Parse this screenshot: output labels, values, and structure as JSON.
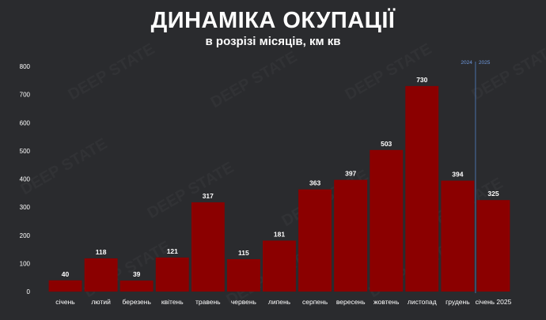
{
  "header": {
    "title": "ДИНАМІКА ОКУПАЦІЇ",
    "subtitle": "в розрізі місяців, км кв"
  },
  "watermark_text": "DEEP STATE",
  "colors": {
    "background": "#2a2b2e",
    "bar": "#8b0000",
    "divider": "#4a6fa5",
    "year_label": "#6f9ae0",
    "text": "#ffffff"
  },
  "year_divider": {
    "left_label": "2024",
    "right_label": "2025"
  },
  "chart_data": {
    "type": "bar",
    "title": "ДИНАМІКА ОКУПАЦІЇ",
    "subtitle": "в розрізі місяців, км кв",
    "categories": [
      "січень",
      "лютий",
      "березень",
      "квітень",
      "травень",
      "червень",
      "липень",
      "серпень",
      "вересень",
      "жовтень",
      "листопад",
      "грудень",
      "січень 2025"
    ],
    "values": [
      40,
      118,
      39,
      121,
      317,
      115,
      181,
      363,
      397,
      503,
      730,
      394,
      325
    ],
    "ylim": [
      0,
      800
    ],
    "yticks": [
      0,
      100,
      200,
      300,
      400,
      500,
      600,
      700,
      800
    ],
    "grid": false,
    "legend": "none"
  }
}
